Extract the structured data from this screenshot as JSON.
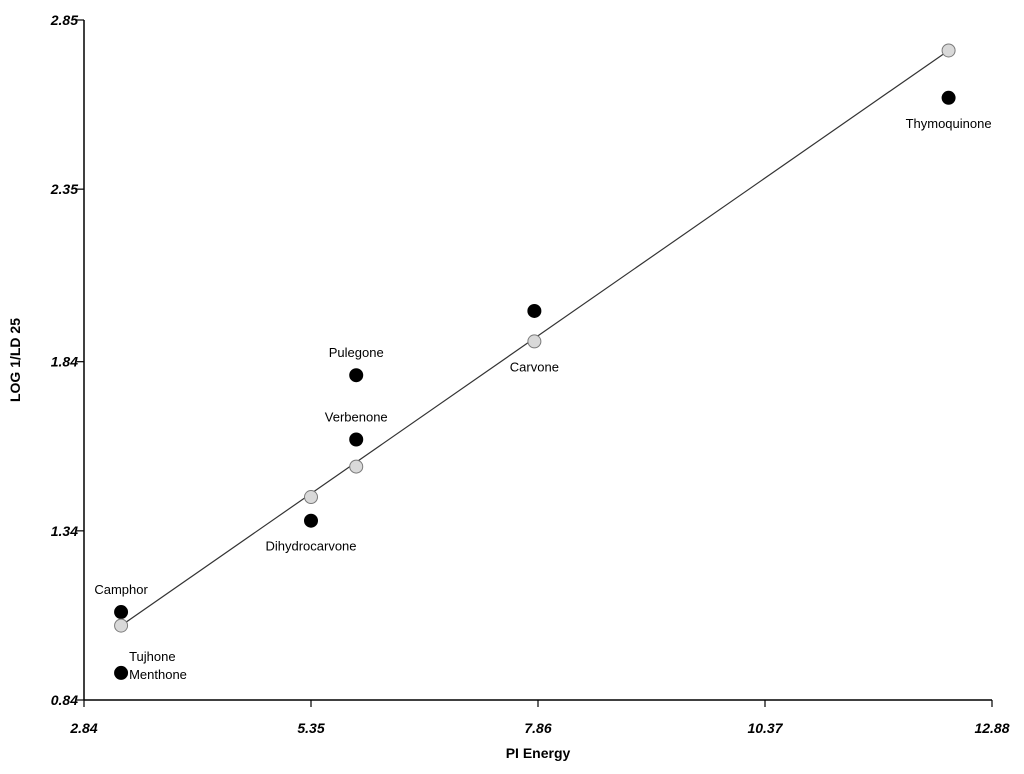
{
  "chart_data": {
    "type": "scatter",
    "xlabel": "PI Energy",
    "ylabel": "LOG 1/LD 25",
    "xlim": [
      2.84,
      12.88
    ],
    "ylim": [
      0.84,
      2.85
    ],
    "x_ticks": [
      "2.84",
      "5.35",
      "7.86",
      "10.37",
      "12.88"
    ],
    "y_ticks": [
      "0.84",
      "1.34",
      "1.84",
      "2.35",
      "2.85"
    ],
    "grid": false,
    "series": [
      {
        "marker_color": "#000000",
        "points": [
          {
            "x": 3.25,
            "y": 1.1
          },
          {
            "x": 3.25,
            "y": 0.92
          },
          {
            "x": 5.35,
            "y": 1.37
          },
          {
            "x": 5.85,
            "y": 1.8
          },
          {
            "x": 5.85,
            "y": 1.61
          },
          {
            "x": 7.82,
            "y": 1.99
          },
          {
            "x": 12.4,
            "y": 2.62
          }
        ]
      },
      {
        "marker_color": "#d9d9d9",
        "points": [
          {
            "x": 3.25,
            "y": 1.06
          },
          {
            "x": 5.35,
            "y": 1.44
          },
          {
            "x": 5.85,
            "y": 1.53
          },
          {
            "x": 7.82,
            "y": 1.9
          },
          {
            "x": 12.4,
            "y": 2.76
          }
        ]
      }
    ],
    "fit_line": {
      "x": [
        3.25,
        12.4
      ],
      "y": [
        1.06,
        2.76
      ]
    },
    "annotations": [
      {
        "text": "Camphor",
        "x": 3.25,
        "y": 1.1,
        "anchor": "above"
      },
      {
        "text": "Tujhone",
        "x": 3.25,
        "y": 0.92,
        "anchor": "upper-right"
      },
      {
        "text": "Menthone",
        "x": 3.25,
        "y": 0.92,
        "anchor": "right"
      },
      {
        "text": "Dihydrocarvone",
        "x": 5.35,
        "y": 1.37,
        "anchor": "below"
      },
      {
        "text": "Verbenone",
        "x": 5.85,
        "y": 1.61,
        "anchor": "above"
      },
      {
        "text": "Pulegone",
        "x": 5.85,
        "y": 1.8,
        "anchor": "above"
      },
      {
        "text": "Carvone",
        "x": 7.82,
        "y": 1.9,
        "anchor": "below"
      },
      {
        "text": "Thymoquinone",
        "x": 12.4,
        "y": 2.62,
        "anchor": "below"
      }
    ]
  }
}
